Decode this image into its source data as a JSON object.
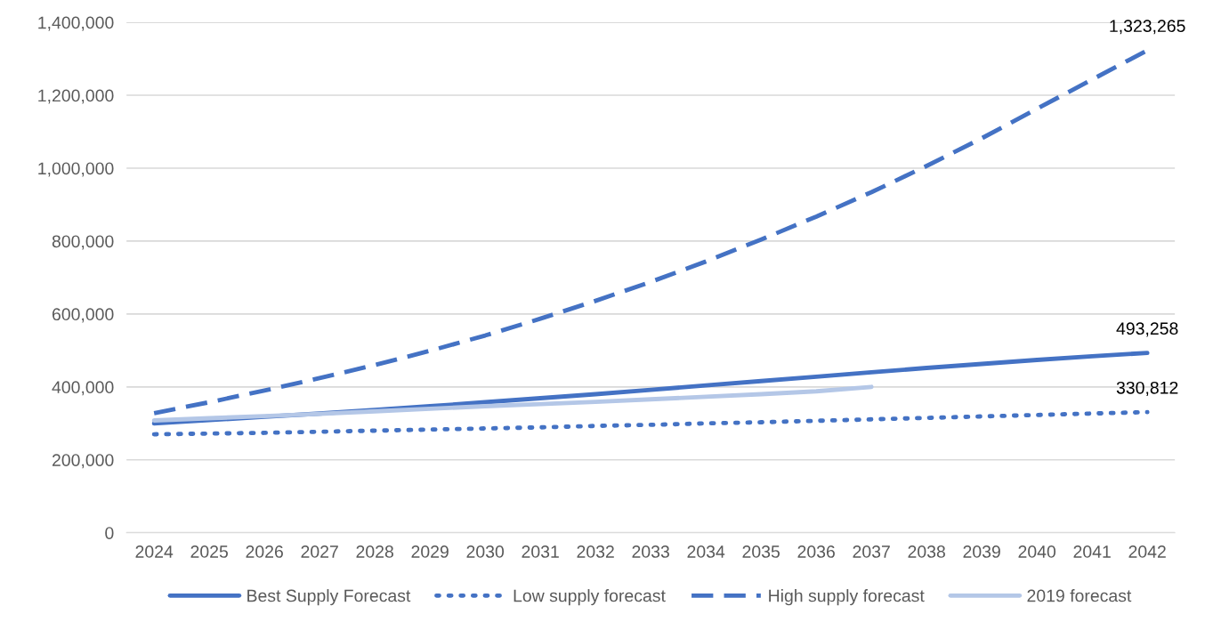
{
  "chart_data": {
    "type": "line",
    "categories": [
      "2024",
      "2025",
      "2026",
      "2027",
      "2028",
      "2029",
      "2030",
      "2031",
      "2032",
      "2033",
      "2034",
      "2035",
      "2036",
      "2037",
      "2038",
      "2039",
      "2040",
      "2041",
      "2042"
    ],
    "ylim": [
      0,
      1400000
    ],
    "yticks": [
      {
        "value": 0,
        "label": "0"
      },
      {
        "value": 200000,
        "label": "200,000"
      },
      {
        "value": 400000,
        "label": "400,000"
      },
      {
        "value": 600000,
        "label": "600,000"
      },
      {
        "value": 800000,
        "label": "800,000"
      },
      {
        "value": 1000000,
        "label": "1,000,000"
      },
      {
        "value": 1200000,
        "label": "1,200,000"
      },
      {
        "value": 1400000,
        "label": "1,400,000"
      }
    ],
    "grid": "y",
    "legend": "bottom",
    "series": [
      {
        "name": "Best Supply Forecast",
        "color": "#4472c4",
        "line_style": "solid",
        "values": [
          300000,
          309000,
          318000,
          327000,
          337000,
          347000,
          358000,
          369000,
          380000,
          392000,
          404000,
          416000,
          428000,
          440000,
          452000,
          463000,
          474000,
          484000,
          493258
        ],
        "value_labels": [
          null,
          null,
          null,
          null,
          null,
          null,
          null,
          null,
          null,
          null,
          null,
          null,
          null,
          null,
          null,
          null,
          null,
          null,
          "493,258"
        ]
      },
      {
        "name": "Low supply forecast",
        "color": "#4472c4",
        "line_style": "dotted",
        "values": [
          270000,
          272000,
          274000,
          277000,
          280000,
          283000,
          286000,
          289000,
          293000,
          296000,
          300000,
          303000,
          307000,
          311000,
          315000,
          319000,
          323000,
          327000,
          330812
        ],
        "value_labels": [
          null,
          null,
          null,
          null,
          null,
          null,
          null,
          null,
          null,
          null,
          null,
          null,
          null,
          null,
          null,
          null,
          null,
          null,
          "330,812"
        ]
      },
      {
        "name": "High supply forecast",
        "color": "#4472c4",
        "line_style": "dashed",
        "values": [
          328000,
          358000,
          390000,
          424000,
          460000,
          499000,
          541000,
          587000,
          636000,
          688000,
          744000,
          804000,
          867000,
          934000,
          1006000,
          1082000,
          1163000,
          1243000,
          1323265
        ],
        "value_labels": [
          null,
          null,
          null,
          null,
          null,
          null,
          null,
          null,
          null,
          null,
          null,
          null,
          null,
          null,
          null,
          null,
          null,
          null,
          "1,323,265"
        ]
      },
      {
        "name": "2019 forecast",
        "color": "#b4c7e7",
        "line_style": "solid",
        "values": [
          308000,
          314000,
          320000,
          326000,
          333000,
          340000,
          347000,
          353000,
          359000,
          366000,
          373000,
          380000,
          388000,
          400000,
          null,
          null,
          null,
          null,
          null
        ]
      }
    ]
  }
}
